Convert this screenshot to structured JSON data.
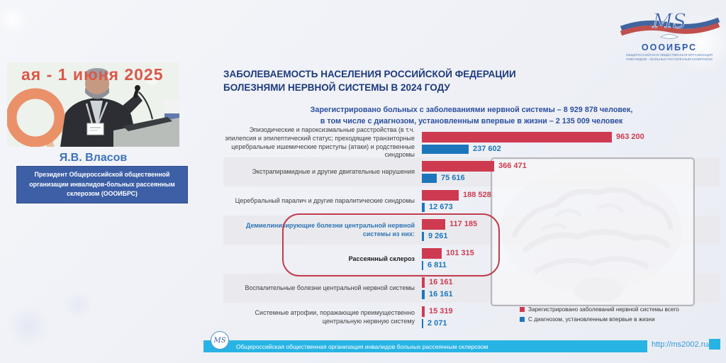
{
  "slide": {
    "title_line1": "ЗАБОЛЕВАЕМОСТЬ НАСЕЛЕНИЯ РОССИЙСКОЙ ФЕДЕРАЦИИ",
    "title_line2": "БОЛЕЗНЯМИ НЕРВНОЙ СИСТЕМЫ В 2024 ГОДУ",
    "subtitle_line1": "Зарегистрировано больных с заболеваниями нервной системы – 8 929 878 человек,",
    "subtitle_line2": "в том числе с диагнозом, установленным впервые в жизни – 2 135 009 человек"
  },
  "speaker": {
    "banner_text": "ая - 1 июня 2025",
    "name": "Я.В. Власов",
    "title": "Президент Общероссийской общественной организации инвалидов-больных рассеянным склерозом (ОООИБРС)"
  },
  "logo": {
    "monogram": "MS",
    "org_short": "ОООИБРС",
    "org_line1": "ОБЩЕРОССИЙСКАЯ ОБЩЕСТВЕННАЯ ОРГАНИЗАЦИЯ",
    "org_line2": "ИНВАЛИДОВ – БОЛЬНЫХ РАССЕЯННЫМ СКЛЕРОЗОМ"
  },
  "footer": {
    "monogram": "MS",
    "text": "Общероссийская общественная организация инвалидов  больных рассеянным склерозом",
    "url": "http://ms2002.ru/"
  },
  "chart_data": {
    "type": "bar",
    "orientation": "horizontal",
    "title": "ЗАБОЛЕВАЕМОСТЬ НАСЕЛЕНИЯ РОССИЙСКОЙ ФЕДЕРАЦИИ БОЛЕЗНЯМИ НЕРВНОЙ СИСТЕМЫ В 2024 ГОДУ",
    "grid": false,
    "legend_position": "bottom-right",
    "xmax": 963200,
    "categories": [
      "Эпизодические и пароксизмальные расстройства (в т.ч. эпилепсия и эпилептический статус; преходящие транзиторные церебральные ишемические приступы (атаки) и родственные синдромы",
      "Экстрапирамидные и другие двигательные нарушения",
      "Церебральный паралич и другие паралитические синдромы",
      "Демиелинизирующие болезни центральной нервной системы из них:",
      "Рассеянный склероз",
      "Воспалительные болезни центральной нервной системы",
      "Системные атрофии, поражающие преимущественно центральную нервную систему"
    ],
    "label_styles": [
      "normal",
      "normal",
      "normal",
      "blue-bold",
      "black-bold",
      "normal",
      "normal"
    ],
    "highlighted_categories": [
      "Демиелинизирующие болезни центральной нервной системы из них:",
      "Рассеянный склероз"
    ],
    "series": [
      {
        "name": "Зарегистрировано заболеваний нервной системы всего",
        "color": "#ce3b51",
        "values": [
          963200,
          366471,
          188528,
          117185,
          101315,
          16161,
          15319
        ],
        "labels": [
          "963 200",
          "366 471",
          "188 528",
          "117 185",
          "101 315",
          "16 161",
          "15 319"
        ]
      },
      {
        "name": "С диагнозом, установленным впервые в жизни",
        "color": "#1d76bc",
        "values": [
          237602,
          75616,
          12673,
          9261,
          6811,
          16161,
          2071
        ],
        "labels": [
          "237 602",
          "75 616",
          "12 673",
          "9 261",
          "6 811",
          "16 161",
          "2 071"
        ]
      }
    ]
  }
}
